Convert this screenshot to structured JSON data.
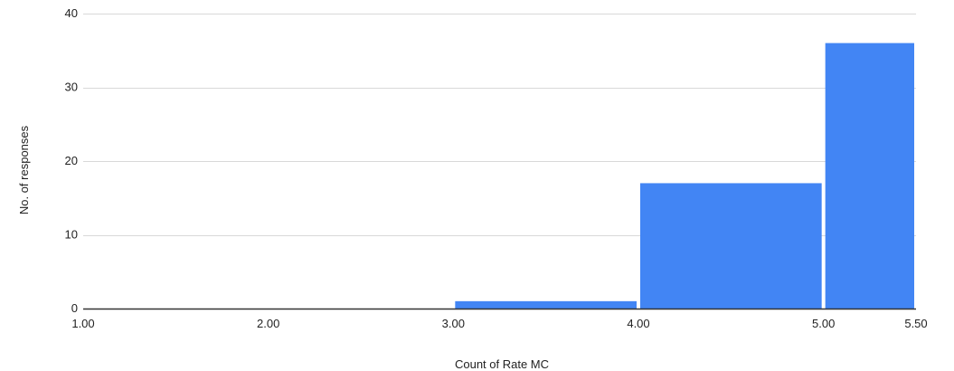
{
  "chart_data": {
    "type": "bar",
    "subtype": "histogram",
    "title": "",
    "xlabel": "Count of Rate MC",
    "ylabel": "No. of responses",
    "bins": [
      {
        "x0": 1.0,
        "x1": 2.0,
        "value": 0
      },
      {
        "x0": 2.0,
        "x1": 3.0,
        "value": 0
      },
      {
        "x0": 3.0,
        "x1": 4.0,
        "value": 1
      },
      {
        "x0": 4.0,
        "x1": 5.0,
        "value": 17
      },
      {
        "x0": 5.0,
        "x1": 5.5,
        "value": 36
      }
    ],
    "x_ticks": [
      "1.00",
      "2.00",
      "3.00",
      "4.00",
      "5.00",
      "5.50"
    ],
    "x_tick_values": [
      1.0,
      2.0,
      3.0,
      4.0,
      5.0,
      5.5
    ],
    "y_ticks": [
      "0",
      "10",
      "20",
      "30",
      "40"
    ],
    "y_tick_values": [
      0,
      10,
      20,
      30,
      40
    ],
    "xlim": [
      1.0,
      5.5
    ],
    "ylim": [
      0,
      40
    ],
    "grid": true,
    "bar_color": "#4285f4",
    "grid_color": "#d9d9d9",
    "baseline_color": "#333333"
  }
}
